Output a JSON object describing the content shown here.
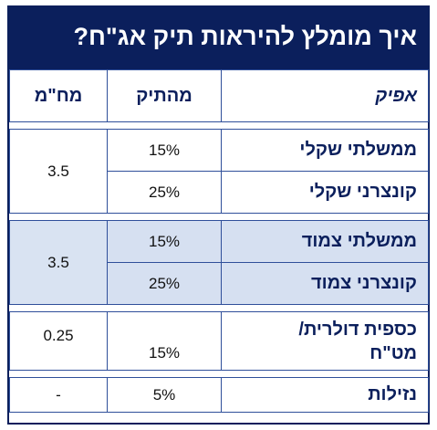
{
  "title": "איך מומלץ להיראות תיק אג\"ח?",
  "headers": {
    "fund": "אפיק",
    "track": "מהתיק",
    "duration": "מח\"מ"
  },
  "groups": [
    {
      "duration": "3.5",
      "rows": [
        {
          "name": "ממשלתי שקלי",
          "pct": "15%"
        },
        {
          "name": "קונצרני שקלי",
          "pct": "25%"
        }
      ]
    },
    {
      "duration": "3.5",
      "rows": [
        {
          "name": "ממשלתי צמוד",
          "pct": "15%"
        },
        {
          "name": "קונצרני צמוד",
          "pct": "25%"
        }
      ]
    },
    {
      "duration": "0.25",
      "rows": [
        {
          "name_line1": "כספית דולרית/",
          "name_line2": "מט\"ח",
          "pct": "15%"
        }
      ]
    },
    {
      "duration": "-",
      "rows": [
        {
          "name": "נזילות",
          "pct": "5%"
        }
      ]
    }
  ],
  "colors": {
    "navy": "#0b1f5c",
    "light_blue_band": "#d9e3f2"
  }
}
